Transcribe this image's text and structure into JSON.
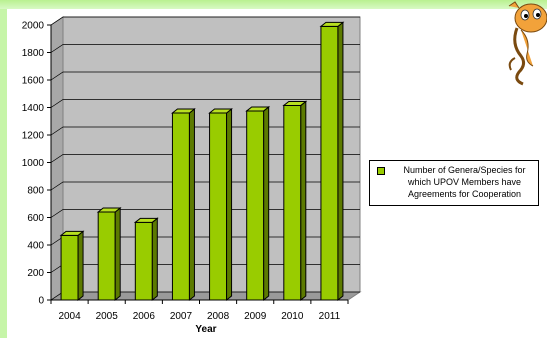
{
  "chart_data": {
    "type": "bar",
    "categories": [
      "2004",
      "2005",
      "2006",
      "2007",
      "2008",
      "2009",
      "2010",
      "2011"
    ],
    "series": [
      {
        "name": "Number of Genera/Species for which UPOV Members have Agreements for Cooperation",
        "values": [
          470,
          640,
          565,
          1360,
          1360,
          1375,
          1415,
          1990
        ]
      }
    ],
    "y_ticks": [
      "0",
      "200",
      "400",
      "600",
      "800",
      "1000",
      "1200",
      "1400",
      "1600",
      "1800",
      "2000"
    ],
    "xlabel": "Year",
    "ylabel": "",
    "ylim": [
      0,
      2000
    ],
    "grid": true,
    "legend_position": "right",
    "bar_color": "#99cc00",
    "plot_background": "#c0c0c0"
  },
  "legend": {
    "label": "Number of Genera/Species for which UPOV Members have Agreements for Cooperation"
  }
}
